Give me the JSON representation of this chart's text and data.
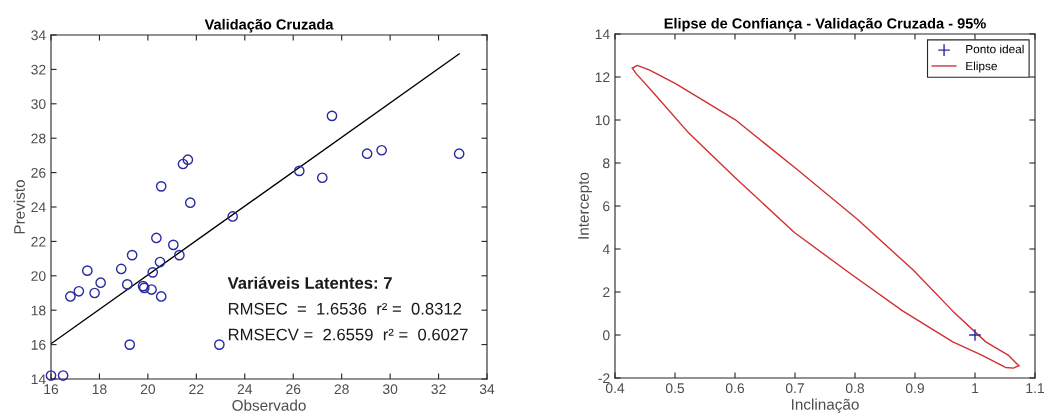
{
  "chart_data": [
    {
      "type": "scatter",
      "title": "Validação Cruzada",
      "xlabel": "Observado",
      "ylabel": "Previsto",
      "xlim": [
        16,
        34
      ],
      "ylim": [
        14,
        34
      ],
      "xticks": [
        16,
        18,
        20,
        22,
        24,
        26,
        28,
        30,
        32,
        34
      ],
      "yticks": [
        14,
        16,
        18,
        20,
        22,
        24,
        26,
        28,
        30,
        32,
        34
      ],
      "grid": false,
      "legend": false,
      "annotations": [
        "Variáveis Latentes: 7",
        "RMSEC  =  1.6536  r² =  0.8312",
        "RMSECV =  2.6559  r² =  0.6027"
      ],
      "series": [
        {
          "color": "#2a2aa0",
          "marker": "circle",
          "x": [
            16.0,
            16.5,
            16.8,
            17.15,
            17.5,
            17.8,
            18.05,
            18.9,
            19.15,
            19.35,
            19.25,
            19.8,
            19.85,
            20.15,
            20.2,
            20.35,
            20.5,
            20.55,
            21.05,
            21.3,
            23.5,
            22.95,
            20.55,
            21.45,
            21.65,
            21.75,
            26.25,
            27.2,
            27.6,
            29.05,
            29.65,
            32.85
          ],
          "values": [
            14.2,
            14.2,
            18.8,
            19.1,
            20.3,
            19.0,
            19.6,
            20.4,
            19.5,
            21.2,
            16.0,
            19.4,
            19.3,
            19.2,
            20.2,
            22.2,
            20.8,
            18.8,
            21.8,
            21.2,
            23.45,
            16.0,
            25.2,
            26.5,
            26.75,
            24.25,
            26.1,
            25.7,
            29.3,
            27.1,
            27.3,
            27.1
          ]
        },
        {
          "type": "line",
          "color": "#000000",
          "line_style": "solid",
          "marker": "none",
          "x": [
            16.0,
            32.85
          ],
          "values": [
            16.05,
            32.9
          ]
        }
      ]
    },
    {
      "type": "line",
      "title": "Elipse de Confiança - Validação Cruzada - 95%",
      "xlabel": "Inclinação",
      "ylabel": "Intercepto",
      "xlim": [
        0.4,
        1.1
      ],
      "ylim": [
        -2,
        14
      ],
      "xticks": [
        0.4,
        0.5,
        0.6,
        0.7,
        0.8,
        0.9,
        1,
        1.1
      ],
      "yticks": [
        -2,
        0,
        2,
        4,
        6,
        8,
        10,
        12,
        14
      ],
      "grid": false,
      "legend": "top right",
      "series": [
        {
          "type": "scatter",
          "name": "Ponto ideal",
          "color": "#2a2aa0",
          "marker": "cross",
          "x": [
            1
          ],
          "values": [
            0
          ]
        },
        {
          "name": "Elipse",
          "color": "#d03030",
          "line_style": "solid",
          "marker": "none",
          "x": [
            0.429,
            0.437,
            0.457,
            0.501,
            0.6,
            0.699,
            0.803,
            0.897,
            0.963,
            1.018,
            1.056,
            1.073
          ],
          "values": [
            12.41,
            12.54,
            12.33,
            11.69,
            10.02,
            7.8,
            5.41,
            3.02,
            1.11,
            -0.32,
            -0.95,
            -1.43
          ]
        },
        {
          "color": "#d03030",
          "line_style": "solid",
          "marker": "none",
          "x": [
            0.429,
            0.435,
            0.468,
            0.523,
            0.6,
            0.699,
            0.792,
            0.88,
            0.963,
            1.012,
            1.051,
            1.064,
            1.073
          ],
          "values": [
            12.41,
            12.17,
            11.14,
            9.39,
            7.32,
            4.77,
            2.86,
            1.11,
            -0.32,
            -0.95,
            -1.51,
            -1.54,
            -1.43
          ]
        }
      ]
    }
  ]
}
